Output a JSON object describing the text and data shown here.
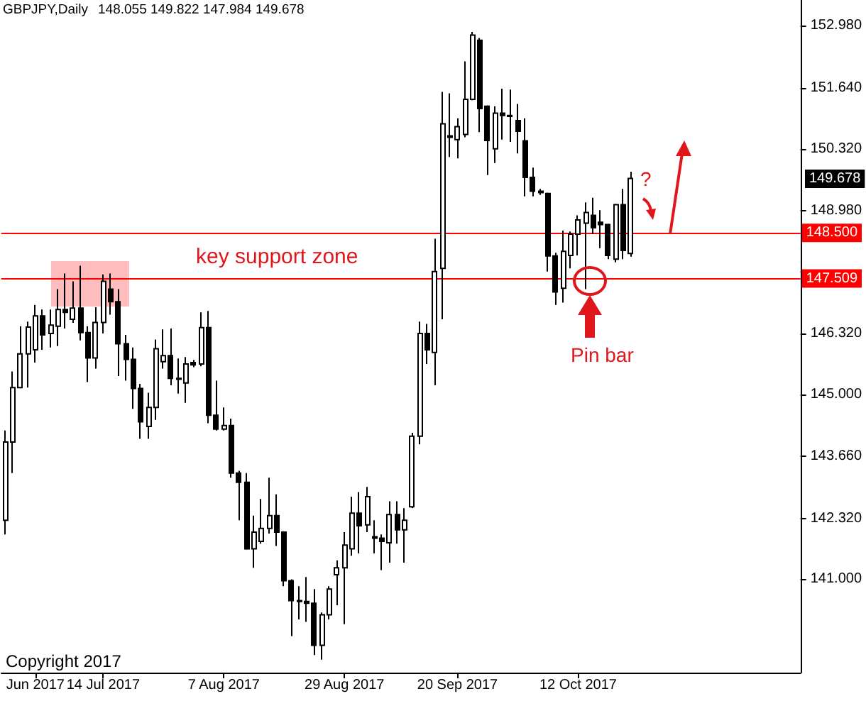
{
  "chart_data": {
    "type": "candlestick",
    "title": "GBPJPY,Daily",
    "subtitle": "148.055 149.822 147.984 149.678",
    "categories": [
      null,
      null,
      null,
      null,
      "Jun 2017",
      null,
      null,
      null,
      null,
      null,
      null,
      null,
      null,
      "14 Jul 2017",
      null,
      null,
      null,
      null,
      null,
      null,
      null,
      null,
      null,
      null,
      null,
      null,
      null,
      null,
      null,
      "7 Aug 2017",
      null,
      null,
      null,
      null,
      null,
      null,
      null,
      null,
      null,
      null,
      null,
      null,
      null,
      null,
      null,
      "29 Aug 2017",
      null,
      null,
      null,
      null,
      null,
      null,
      null,
      null,
      null,
      null,
      null,
      null,
      null,
      null,
      "20 Sep 2017",
      null,
      null,
      null,
      null,
      null,
      null,
      null,
      null,
      null,
      null,
      null,
      null,
      null,
      null,
      null,
      "12 Oct 2017",
      null,
      null,
      null,
      null,
      null,
      null,
      null,
      null,
      null,
      null,
      null,
      null,
      null,
      null,
      null,
      null,
      null,
      null,
      null,
      null,
      null,
      null,
      null,
      null,
      null,
      null,
      null,
      null,
      null
    ],
    "ohlc": [
      [
        142.28,
        144.22,
        141.97,
        143.97
      ],
      [
        143.97,
        145.5,
        143.3,
        145.15
      ],
      [
        145.15,
        146.48,
        145.13,
        145.88
      ],
      [
        145.88,
        146.58,
        145.15,
        146.46
      ],
      [
        145.97,
        146.94,
        145.69,
        146.7
      ],
      [
        146.7,
        146.84,
        145.97,
        146.29
      ],
      [
        146.32,
        146.84,
        146.02,
        146.5
      ],
      [
        146.48,
        147.28,
        146.05,
        146.84
      ],
      [
        146.84,
        147.62,
        146.43,
        146.78
      ],
      [
        146.63,
        147.45,
        146.55,
        146.87
      ],
      [
        146.87,
        147.79,
        146.17,
        146.34
      ],
      [
        146.34,
        146.48,
        145.27,
        145.79
      ],
      [
        145.79,
        146.89,
        145.56,
        146.56
      ],
      [
        146.56,
        147.6,
        146.32,
        147.45
      ],
      [
        147.28,
        147.62,
        146.73,
        147.01
      ],
      [
        147.01,
        147.28,
        145.4,
        146.1
      ],
      [
        146.1,
        146.29,
        145.3,
        145.76
      ],
      [
        145.76,
        146.02,
        144.69,
        145.13
      ],
      [
        145.13,
        145.23,
        144.04,
        144.41
      ],
      [
        144.31,
        145.04,
        144.04,
        144.72
      ],
      [
        144.72,
        146.19,
        144.45,
        145.99
      ],
      [
        145.71,
        146.41,
        145.56,
        145.84
      ],
      [
        145.84,
        146.43,
        145.2,
        145.35
      ],
      [
        145.35,
        145.78,
        145.02,
        145.33
      ],
      [
        145.25,
        145.81,
        144.82,
        145.66
      ],
      [
        145.69,
        145.75,
        145.59,
        145.64
      ],
      [
        145.66,
        146.78,
        145.61,
        146.45
      ],
      [
        146.45,
        146.81,
        144.38,
        144.55
      ],
      [
        144.55,
        145.3,
        144.22,
        144.25
      ],
      [
        144.25,
        144.72,
        144.22,
        144.33
      ],
      [
        144.33,
        144.48,
        143.2,
        143.3
      ],
      [
        143.3,
        143.35,
        142.28,
        143.1
      ],
      [
        143.1,
        143.3,
        141.64,
        141.66
      ],
      [
        141.66,
        142.38,
        141.25,
        142.02
      ],
      [
        141.82,
        142.74,
        141.77,
        142.1
      ],
      [
        142.1,
        143.2,
        141.99,
        142.38
      ],
      [
        142.38,
        142.84,
        141.72,
        142.02
      ],
      [
        142.02,
        142.04,
        140.85,
        140.97
      ],
      [
        140.97,
        141.0,
        139.77,
        140.54
      ],
      [
        140.54,
        140.85,
        140.13,
        140.52
      ],
      [
        140.52,
        141.05,
        140.08,
        140.48
      ],
      [
        140.48,
        140.79,
        139.36,
        139.57
      ],
      [
        139.57,
        140.28,
        139.26,
        140.23
      ],
      [
        140.23,
        140.85,
        140.13,
        140.79
      ],
      [
        141.1,
        141.41,
        140.44,
        141.25
      ],
      [
        141.25,
        142.02,
        140.03,
        141.74
      ],
      [
        141.66,
        142.79,
        141.51,
        142.43
      ],
      [
        142.43,
        142.89,
        141.56,
        142.16
      ],
      [
        142.18,
        143.0,
        142.02,
        142.79
      ],
      [
        141.92,
        142.28,
        141.56,
        141.89
      ],
      [
        141.89,
        141.97,
        141.2,
        141.82
      ],
      [
        141.79,
        142.69,
        141.36,
        142.4
      ],
      [
        142.4,
        142.69,
        141.77,
        142.07
      ],
      [
        142.07,
        142.54,
        141.36,
        142.28
      ],
      [
        142.57,
        144.17,
        142.54,
        144.1
      ],
      [
        144.1,
        146.58,
        143.92,
        146.32
      ],
      [
        146.32,
        146.53,
        145.66,
        145.97
      ],
      [
        145.91,
        148.37,
        145.2,
        147.66
      ],
      [
        147.73,
        151.55,
        146.63,
        150.86
      ],
      [
        150.6,
        151.52,
        150.14,
        150.57
      ],
      [
        150.52,
        150.98,
        150.11,
        150.8
      ],
      [
        150.63,
        152.21,
        150.57,
        151.39
      ],
      [
        151.39,
        152.85,
        151.37,
        152.78
      ],
      [
        152.67,
        152.72,
        150.68,
        151.19
      ],
      [
        151.24,
        151.26,
        149.75,
        150.5
      ],
      [
        150.32,
        151.24,
        150.01,
        151.09
      ],
      [
        151.09,
        151.62,
        150.52,
        151.04
      ],
      [
        151.04,
        151.6,
        150.47,
        151.02
      ],
      [
        150.93,
        151.29,
        150.22,
        150.7
      ],
      [
        150.49,
        150.98,
        149.29,
        149.7
      ],
      [
        149.7,
        149.91,
        149.29,
        149.4
      ],
      [
        149.4,
        149.45,
        149.32,
        149.37
      ],
      [
        149.35,
        149.37,
        147.66,
        148.0
      ],
      [
        148.0,
        148.07,
        146.94,
        147.22
      ],
      [
        147.3,
        148.55,
        146.99,
        148.1
      ],
      [
        148.01,
        148.53,
        147.73,
        148.47
      ],
      [
        148.47,
        148.88,
        148.01,
        148.78
      ],
      [
        148.71,
        149.16,
        147.28,
        148.94
      ],
      [
        148.88,
        149.26,
        148.47,
        148.61
      ],
      [
        148.73,
        148.99,
        148.17,
        148.68
      ],
      [
        148.68,
        148.7,
        147.93,
        148.01
      ],
      [
        147.93,
        149.13,
        147.86,
        149.11
      ],
      [
        149.11,
        149.45,
        147.93,
        148.12
      ],
      [
        148.055,
        149.822,
        147.984,
        149.678
      ],
      null,
      null,
      null,
      null,
      null,
      null,
      null,
      null,
      null,
      null,
      null,
      null,
      null,
      null,
      null,
      null,
      null,
      null,
      null,
      null,
      null,
      null
    ],
    "color": "#000000",
    "ylim": [
      138.98,
      153.54
    ],
    "yticks": [
      {
        "value": 141,
        "label": "141.000"
      },
      {
        "value": 142.32,
        "label": "142.320"
      },
      {
        "value": 143.66,
        "label": "143.660"
      },
      {
        "value": 145,
        "label": "145.000"
      },
      {
        "value": 146.32,
        "label": "146.320"
      },
      {
        "value": 147.66,
        "label": null
      },
      {
        "value": 148.98,
        "label": "148.980"
      },
      {
        "value": 150.32,
        "label": "150.320"
      },
      {
        "value": 151.64,
        "label": "151.640"
      },
      {
        "value": 152.98,
        "label": "152.980"
      }
    ],
    "ref_lines": [
      {
        "axis": "y",
        "value": 148.5,
        "label": "148.500",
        "color": "#ff0000"
      },
      {
        "axis": "y",
        "value": 147.509,
        "label": "147.509",
        "color": "#ff0000"
      }
    ],
    "annotations": [
      "key support zone",
      "Pin bar",
      "?",
      "Copyright 2017",
      "149.678"
    ]
  }
}
